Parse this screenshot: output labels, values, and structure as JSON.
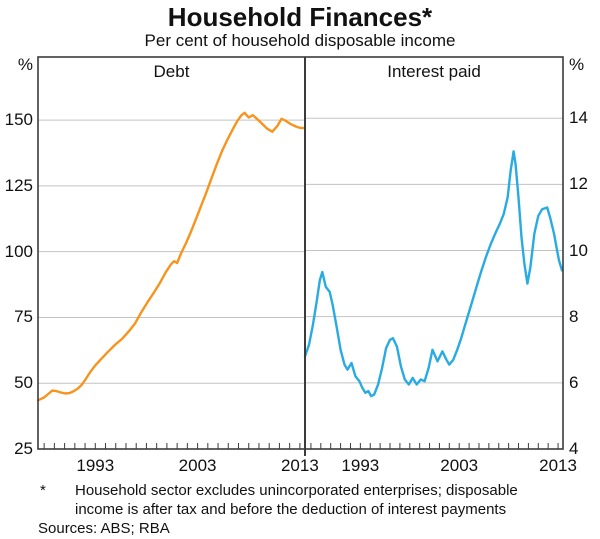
{
  "header": {
    "title": "Household Finances*",
    "subtitle": "Per cent of household disposable income"
  },
  "footnote": {
    "marker": "*",
    "line1": "Household sector excludes unincorporated enterprises; disposable",
    "line2": "income is after tax and before the deduction of interest payments",
    "sources": "Sources: ABS; RBA"
  },
  "chart_data": [
    {
      "type": "line",
      "title": "Debt",
      "unit": "%",
      "color": "#F7941E",
      "legend": "none",
      "grid": true,
      "xlim": [
        1987.4,
        2013.5
      ],
      "ylim": [
        25,
        174
      ],
      "yticks": [
        150,
        125,
        100,
        75,
        50,
        25
      ],
      "ygrid": [
        50,
        75,
        100,
        125,
        150
      ],
      "xticks": [
        1993,
        2003,
        2013
      ],
      "x": [
        1987.4,
        1988.0,
        1988.4,
        1988.8,
        1989.2,
        1989.6,
        1990.1,
        1990.5,
        1990.9,
        1991.3,
        1991.7,
        1992.1,
        1992.5,
        1993.0,
        1993.6,
        1994.2,
        1994.9,
        1995.6,
        1996.3,
        1996.9,
        1997.5,
        1998.1,
        1998.7,
        1999.3,
        1999.9,
        2000.4,
        2000.7,
        2001.0,
        2001.4,
        2001.9,
        2002.4,
        2002.9,
        2003.4,
        2003.9,
        2004.4,
        2004.9,
        2005.4,
        2005.9,
        2006.4,
        2006.9,
        2007.3,
        2007.6,
        2008.0,
        2008.4,
        2008.8,
        2009.3,
        2009.8,
        2010.3,
        2010.8,
        2011.2,
        2011.6,
        2012.1,
        2012.6,
        2013.0,
        2013.3
      ],
      "values": [
        43.5,
        44.6,
        45.9,
        47.2,
        47.0,
        46.5,
        46.1,
        46.3,
        47.0,
        48.0,
        49.5,
        51.8,
        54.2,
        56.8,
        59.3,
        61.8,
        64.5,
        66.8,
        69.8,
        72.8,
        77.0,
        80.8,
        84.3,
        88.0,
        92.3,
        95.2,
        96.4,
        95.7,
        99.5,
        103.5,
        108.0,
        113.0,
        118.0,
        123.0,
        128.3,
        133.5,
        138.3,
        142.5,
        146.3,
        149.8,
        151.9,
        152.8,
        151.0,
        151.9,
        150.5,
        148.7,
        146.8,
        145.6,
        147.8,
        150.5,
        149.8,
        148.5,
        147.6,
        147.1,
        147.0
      ]
    },
    {
      "type": "line",
      "title": "Interest paid",
      "unit": "%",
      "color": "#29ABE2",
      "legend": "none",
      "grid": true,
      "xlim": [
        1987.4,
        2013.5
      ],
      "ylim": [
        4,
        15.85
      ],
      "yticks": [
        14,
        12,
        10,
        8,
        6,
        4
      ],
      "ygrid": [
        6,
        8,
        10,
        12,
        14
      ],
      "xticks": [
        1993,
        2003,
        2013
      ],
      "x": [
        1987.4,
        1987.8,
        1988.2,
        1988.6,
        1988.9,
        1989.15,
        1989.5,
        1989.9,
        1990.2,
        1990.6,
        1991.0,
        1991.4,
        1991.7,
        1992.1,
        1992.5,
        1992.9,
        1993.2,
        1993.5,
        1993.8,
        1994.1,
        1994.4,
        1994.8,
        1995.2,
        1995.6,
        1996.0,
        1996.3,
        1996.7,
        1997.1,
        1997.5,
        1997.9,
        1998.3,
        1998.7,
        1999.1,
        1999.5,
        1999.9,
        2000.3,
        2000.8,
        2001.3,
        2001.7,
        2002.0,
        2002.4,
        2002.8,
        2003.2,
        2003.7,
        2004.2,
        2004.7,
        2005.2,
        2005.7,
        2006.2,
        2006.7,
        2007.1,
        2007.5,
        2007.9,
        2008.2,
        2008.5,
        2008.7,
        2009.0,
        2009.3,
        2009.6,
        2009.9,
        2010.2,
        2010.6,
        2011.0,
        2011.4,
        2011.9,
        2012.2,
        2012.6,
        2012.9,
        2013.1,
        2013.4
      ],
      "values": [
        6.8,
        7.15,
        7.75,
        8.5,
        9.1,
        9.35,
        8.9,
        8.75,
        8.35,
        7.7,
        7.0,
        6.55,
        6.4,
        6.6,
        6.2,
        6.05,
        5.85,
        5.7,
        5.75,
        5.6,
        5.65,
        5.95,
        6.45,
        7.05,
        7.3,
        7.35,
        7.1,
        6.5,
        6.1,
        5.95,
        6.15,
        5.95,
        6.1,
        6.05,
        6.45,
        7.0,
        6.65,
        6.95,
        6.7,
        6.55,
        6.7,
        7.0,
        7.35,
        7.85,
        8.35,
        8.85,
        9.35,
        9.8,
        10.2,
        10.55,
        10.8,
        11.1,
        11.6,
        12.4,
        13.0,
        12.6,
        11.6,
        10.4,
        9.6,
        9.0,
        9.5,
        10.5,
        11.05,
        11.25,
        11.3,
        11.0,
        10.5,
        10.0,
        9.7,
        9.4
      ]
    }
  ]
}
